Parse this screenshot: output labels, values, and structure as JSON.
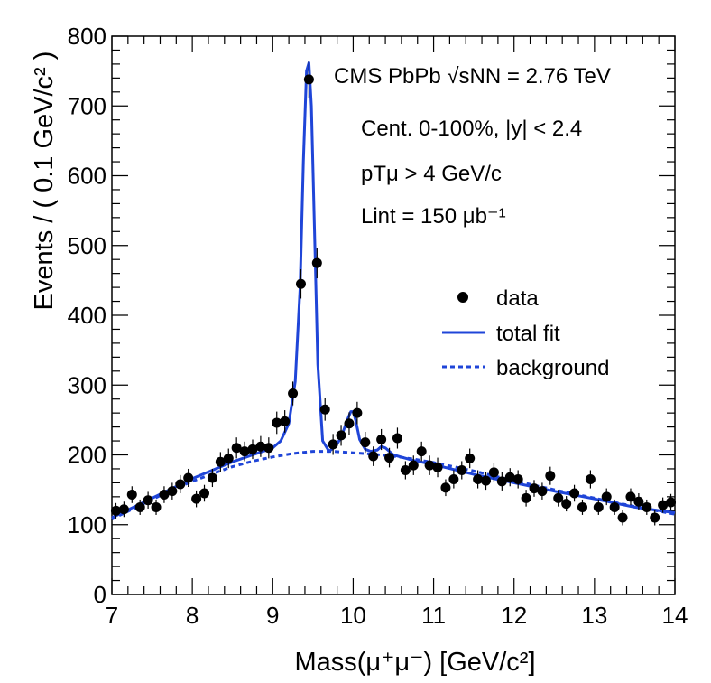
{
  "chart_data": {
    "type": "scatter",
    "xlabel": "Mass(μ⁺μ⁻) [GeV/c²]",
    "ylabel": "Events / ( 0.1 GeV/c² )",
    "xlim": [
      7,
      14
    ],
    "ylim": [
      0,
      800
    ],
    "x_ticks": [
      "7",
      "8",
      "9",
      "10",
      "11",
      "12",
      "13",
      "14"
    ],
    "y_ticks": [
      "0",
      "100",
      "200",
      "300",
      "400",
      "500",
      "600",
      "700",
      "800"
    ],
    "annotations": {
      "title": "CMS PbPb √sNN = 2.76 TeV",
      "centrality": "Cent. 0-100%, |y| < 2.4",
      "pt_cut": "pTμ > 4 GeV/c",
      "lumi": "Lint = 150 μb⁻¹"
    },
    "legend": {
      "placement": "right",
      "entries": [
        "data",
        "total fit",
        "background"
      ]
    },
    "series": [
      {
        "name": "data",
        "x": [
          7.05,
          7.15,
          7.25,
          7.35,
          7.45,
          7.55,
          7.65,
          7.75,
          7.85,
          7.95,
          8.05,
          8.15,
          8.25,
          8.35,
          8.45,
          8.55,
          8.65,
          8.75,
          8.85,
          8.95,
          9.05,
          9.15,
          9.25,
          9.35,
          9.45,
          9.55,
          9.65,
          9.75,
          9.85,
          9.95,
          10.05,
          10.15,
          10.25,
          10.35,
          10.45,
          10.55,
          10.65,
          10.75,
          10.85,
          10.95,
          11.05,
          11.15,
          11.25,
          11.35,
          11.45,
          11.55,
          11.65,
          11.75,
          11.85,
          11.95,
          12.05,
          12.15,
          12.25,
          12.35,
          12.45,
          12.55,
          12.65,
          12.75,
          12.85,
          12.95,
          13.05,
          13.15,
          13.25,
          13.35,
          13.45,
          13.55,
          13.65,
          13.75,
          13.85,
          13.95
        ],
        "values": [
          120,
          122,
          143,
          125,
          135,
          125,
          143,
          148,
          158,
          167,
          137,
          145,
          167,
          190,
          195,
          210,
          205,
          208,
          212,
          210,
          246,
          248,
          288,
          445,
          738,
          475,
          265,
          215,
          228,
          245,
          260,
          218,
          198,
          222,
          196,
          224,
          178,
          185,
          205,
          185,
          182,
          153,
          165,
          178,
          195,
          165,
          163,
          175,
          162,
          168,
          165,
          138,
          152,
          148,
          170,
          138,
          130,
          145,
          125,
          165,
          125,
          140,
          125,
          110,
          140,
          133,
          125,
          110,
          128,
          132
        ],
        "errors": [
          11,
          11,
          12,
          11,
          12,
          11,
          12,
          12,
          13,
          13,
          12,
          12,
          13,
          14,
          14,
          15,
          14,
          14,
          15,
          15,
          16,
          16,
          17,
          21,
          27,
          22,
          16,
          15,
          15,
          16,
          16,
          15,
          14,
          15,
          14,
          15,
          13,
          14,
          14,
          14,
          14,
          12,
          13,
          13,
          14,
          13,
          13,
          13,
          13,
          13,
          13,
          12,
          12,
          12,
          13,
          12,
          11,
          12,
          11,
          13,
          11,
          12,
          11,
          11,
          12,
          12,
          11,
          11,
          11,
          12
        ]
      },
      {
        "name": "total fit",
        "x": [
          7.0,
          7.25,
          7.5,
          7.75,
          8.0,
          8.25,
          8.5,
          8.75,
          9.0,
          9.1,
          9.2,
          9.28,
          9.34,
          9.38,
          9.42,
          9.45,
          9.48,
          9.52,
          9.56,
          9.62,
          9.7,
          9.78,
          9.85,
          9.92,
          9.97,
          10.0,
          10.03,
          10.08,
          10.15,
          10.22,
          10.3,
          10.35,
          10.4,
          10.5,
          10.75,
          11.0,
          11.5,
          12.0,
          12.5,
          13.0,
          13.5,
          14.0
        ],
        "values": [
          110,
          124,
          138,
          152,
          166,
          178,
          190,
          200,
          210,
          220,
          245,
          305,
          440,
          620,
          750,
          762,
          700,
          520,
          330,
          220,
          205,
          212,
          225,
          248,
          262,
          262,
          250,
          222,
          208,
          205,
          207,
          212,
          210,
          200,
          192,
          186,
          172,
          160,
          148,
          137,
          125,
          117
        ]
      },
      {
        "name": "background",
        "x": [
          7.0,
          7.25,
          7.5,
          7.75,
          8.0,
          8.25,
          8.5,
          8.75,
          9.0,
          9.25,
          9.5,
          9.75,
          10.0,
          10.25,
          10.5,
          10.75,
          11.0,
          11.5,
          12.0,
          12.5,
          13.0,
          13.5,
          14.0
        ],
        "values": [
          108,
          122,
          136,
          150,
          162,
          173,
          183,
          191,
          197,
          202,
          205,
          205,
          203,
          201,
          198,
          194,
          189,
          177,
          163,
          150,
          138,
          126,
          115
        ]
      }
    ],
    "colors": {
      "fit": "#1f45d8",
      "data": "#000000"
    }
  }
}
